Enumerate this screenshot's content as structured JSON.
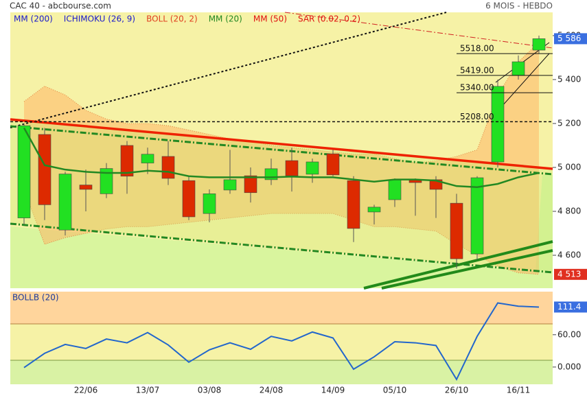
{
  "chart_data": [
    {
      "type": "candlestick",
      "title": "CAC 40 - abcbourse.com",
      "subtitle": "6 MOIS - HEBDO",
      "legend": [
        {
          "name": "MM (200)",
          "color": "#1a1acc"
        },
        {
          "name": "ICHIMOKU (26, 9)",
          "color": "#1a1acc"
        },
        {
          "name": "BOLL (20, 2)",
          "color": "#e04020"
        },
        {
          "name": "MM (20)",
          "color": "#228822"
        },
        {
          "name": "MM (50)",
          "color": "#e01010"
        },
        {
          "name": "SAR (0.02, 0.2)",
          "color": "#e01010"
        }
      ],
      "x": [
        null,
        null,
        null,
        "22/06",
        null,
        null,
        "13/07",
        null,
        null,
        "03/08",
        null,
        null,
        "24/08",
        null,
        null,
        "14/09",
        null,
        null,
        "05/10",
        null,
        null,
        "26/10",
        null,
        null,
        "16/11",
        null
      ],
      "open": [
        4770,
        5150,
        4715,
        4920,
        4880,
        5100,
        5020,
        5050,
        4940,
        4790,
        4897,
        4962,
        4944,
        5031,
        4969,
        5062,
        4940,
        4797,
        4853,
        4944,
        4944,
        4837,
        4606,
        5025,
        5419,
        5534
      ],
      "high": [
        5200,
        5180,
        4980,
        4990,
        5020,
        5120,
        5090,
        5120,
        4960,
        4900,
        5080,
        5000,
        5040,
        5090,
        5040,
        5080,
        4960,
        4830,
        4950,
        4950,
        4960,
        4880,
        4960,
        5400,
        5510,
        5600
      ],
      "low": [
        4740,
        4760,
        4690,
        4800,
        4860,
        4880,
        4970,
        4920,
        4760,
        4750,
        4880,
        4840,
        4920,
        4890,
        4930,
        4960,
        4660,
        4740,
        4820,
        4780,
        4770,
        4540,
        4580,
        5000,
        5400,
        5520
      ],
      "close": [
        5190,
        4830,
        4970,
        4900,
        4995,
        4960,
        5060,
        4950,
        4775,
        4880,
        4944,
        4885,
        4994,
        4962,
        5025,
        4966,
        4722,
        4819,
        4944,
        4931,
        4900,
        4584,
        4953,
        5369,
        5481,
        5586
      ],
      "mm20": [
        5180,
        5010,
        4990,
        4980,
        4975,
        4975,
        4985,
        4980,
        4960,
        4955,
        4955,
        4955,
        4955,
        4958,
        4955,
        4955,
        4945,
        4935,
        4945,
        4945,
        4940,
        4915,
        4910,
        4925,
        4955,
        4975
      ],
      "boll_upper": [
        5300,
        5370,
        5330,
        5260,
        5220,
        5200,
        5200,
        5190,
        5170,
        5150,
        5130,
        5120,
        5100,
        5090,
        5080,
        5070,
        5060,
        5060,
        5040,
        5020,
        5030,
        5050,
        5080,
        5330,
        5480,
        5570
      ],
      "boll_lower": [
        4900,
        4650,
        4680,
        4700,
        4720,
        4730,
        4730,
        4740,
        4750,
        4760,
        4770,
        4780,
        4790,
        4790,
        4790,
        4790,
        4760,
        4730,
        4730,
        4720,
        4710,
        4650,
        4600,
        4550,
        4520,
        4513
      ],
      "up_color": "#22e022",
      "down_color": "#dd2a00",
      "mm20_color": "#228822",
      "ylim": [
        4450,
        5706
      ],
      "yticks": [
        {
          "value": 4600,
          "label": "4 600"
        },
        {
          "value": 4800,
          "label": "4 800"
        },
        {
          "value": 5000,
          "label": "5 000"
        },
        {
          "value": 5200,
          "label": "5 200"
        },
        {
          "value": 5400,
          "label": "5 400"
        },
        {
          "value": 5600,
          "label": "5 600"
        }
      ],
      "levels": [
        {
          "value": 5518,
          "label": "5518.00"
        },
        {
          "value": 5419,
          "label": "5419.00"
        },
        {
          "value": 5340,
          "label": "5340.00"
        },
        {
          "value": 5208,
          "label": "5208.00"
        }
      ],
      "tags": [
        {
          "value": 5586,
          "label": "5 586",
          "color": "#3a6fe0"
        },
        {
          "value": 4513,
          "label": "4 513",
          "color": "#e03020"
        }
      ]
    },
    {
      "type": "line",
      "title": "BOLLB (20)",
      "color": "#2266cc",
      "values": [
        -1,
        25.5,
        42,
        34.5,
        52,
        45,
        64,
        41,
        9,
        32,
        45,
        33,
        57,
        48.5,
        65,
        54,
        -4,
        19,
        47,
        45,
        40,
        -23,
        57,
        119,
        113,
        111.4
      ],
      "ylim": [
        -32,
        140
      ],
      "yticks": [
        {
          "value": 0,
          "label": "0.000"
        },
        {
          "value": 60,
          "label": "60.00"
        }
      ],
      "tag": {
        "value": 111.4,
        "label": "111.4",
        "color": "#3a6fe0"
      }
    }
  ]
}
